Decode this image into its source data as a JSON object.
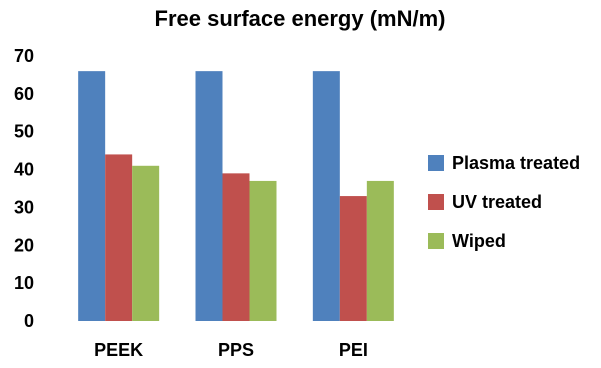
{
  "chart_data": {
    "type": "bar",
    "title": "Free surface energy (mN/m)",
    "xlabel": "",
    "ylabel": "",
    "categories": [
      "PEEK",
      "PPS",
      "PEI"
    ],
    "series": [
      {
        "name": "Plasma treated",
        "values": [
          66,
          66,
          66
        ],
        "color": "#4F81BD"
      },
      {
        "name": "UV treated",
        "values": [
          44,
          39,
          33
        ],
        "color": "#C0504D"
      },
      {
        "name": "Wiped",
        "values": [
          41,
          37,
          37
        ],
        "color": "#9BBB59"
      }
    ],
    "ylim": [
      0,
      70
    ],
    "yticks": [
      0,
      10,
      20,
      30,
      40,
      50,
      60,
      70
    ],
    "grid": false,
    "legend_position": "right"
  }
}
